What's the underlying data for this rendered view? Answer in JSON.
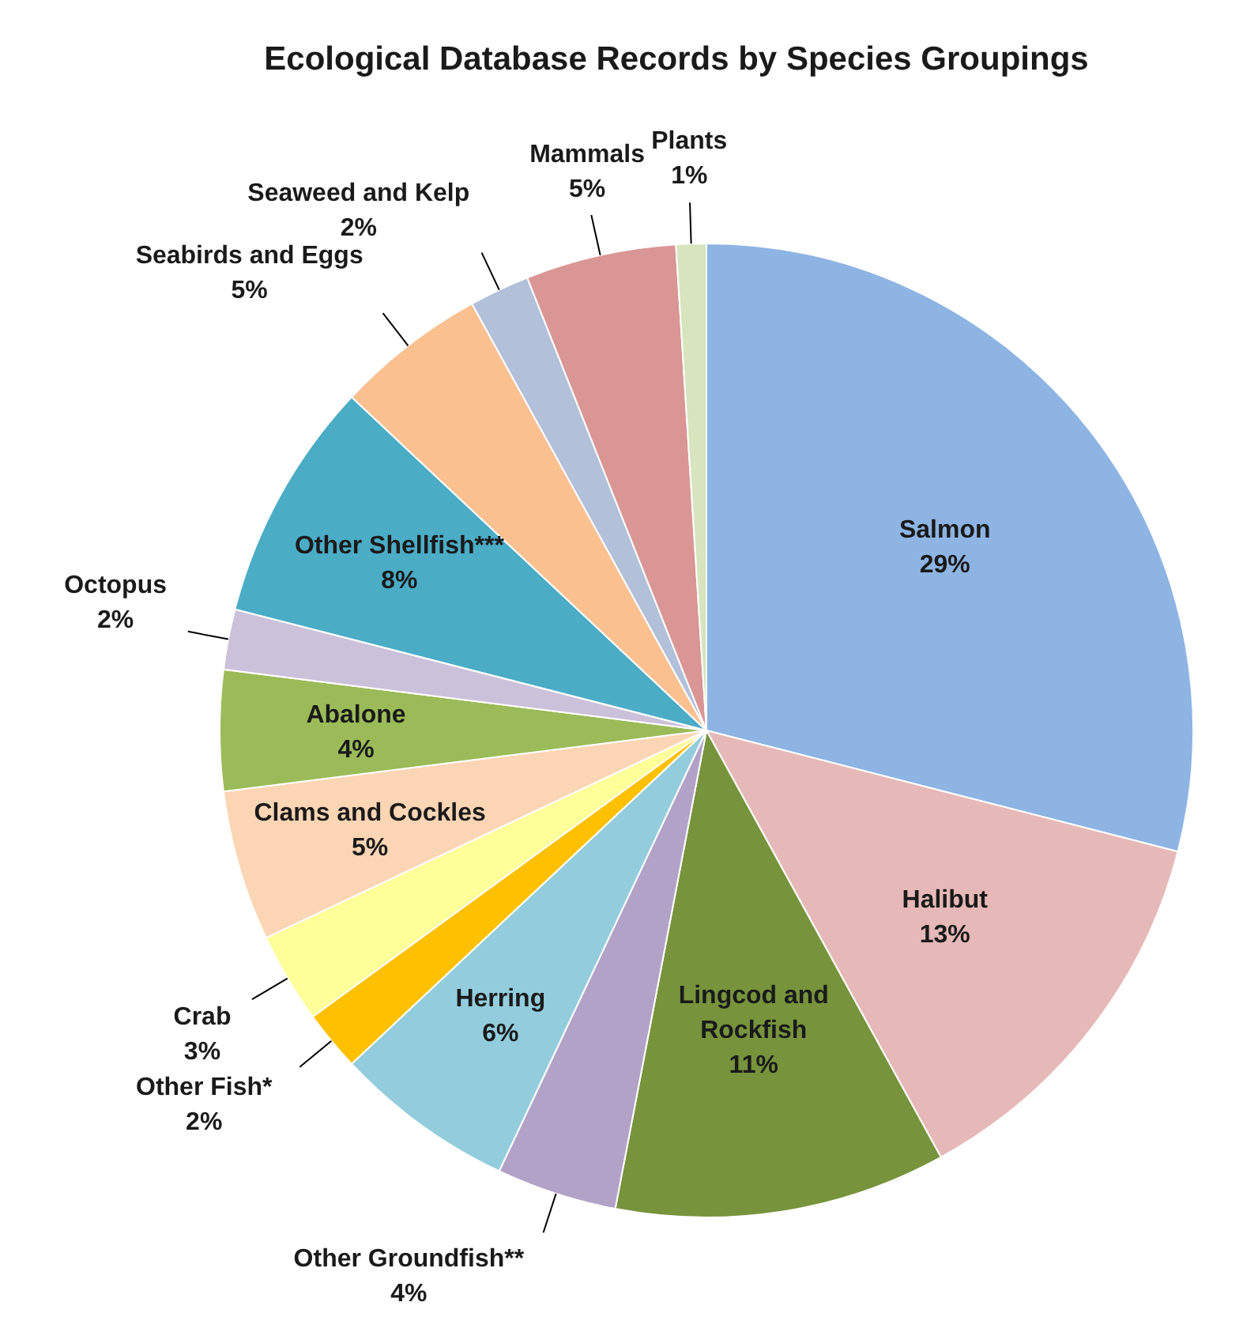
{
  "chart_data": {
    "type": "pie",
    "title": "Ecological Database Records by Species Groupings",
    "categories": [
      "Salmon",
      "Halibut",
      "Lingcod and Rockfish",
      "Other Groundfish**",
      "Herring",
      "Other Fish*",
      "Crab",
      "Clams and Cockles",
      "Abalone",
      "Octopus",
      "Other Shellfish***",
      "Seabirds and Eggs",
      "Seaweed and Kelp",
      "Mammals",
      "Plants"
    ],
    "values": [
      29,
      13,
      11,
      4,
      6,
      2,
      3,
      5,
      4,
      2,
      8,
      5,
      2,
      5,
      1
    ],
    "value_labels": [
      "29%",
      "13%",
      "11%",
      "4%",
      "6%",
      "2%",
      "3%",
      "5%",
      "4%",
      "2%",
      "8%",
      "5%",
      "2%",
      "5%",
      "1%"
    ],
    "colors": [
      "#8eb4e3",
      "#e6b9b8",
      "#77933c",
      "#b3a2c7",
      "#93cddd",
      "#ffc000",
      "#ffff99",
      "#fcd5b5",
      "#9bbb59",
      "#ccc1da",
      "#4bacc6",
      "#fac090",
      "#b3c0da",
      "#d99694",
      "#d7e4bd"
    ]
  }
}
